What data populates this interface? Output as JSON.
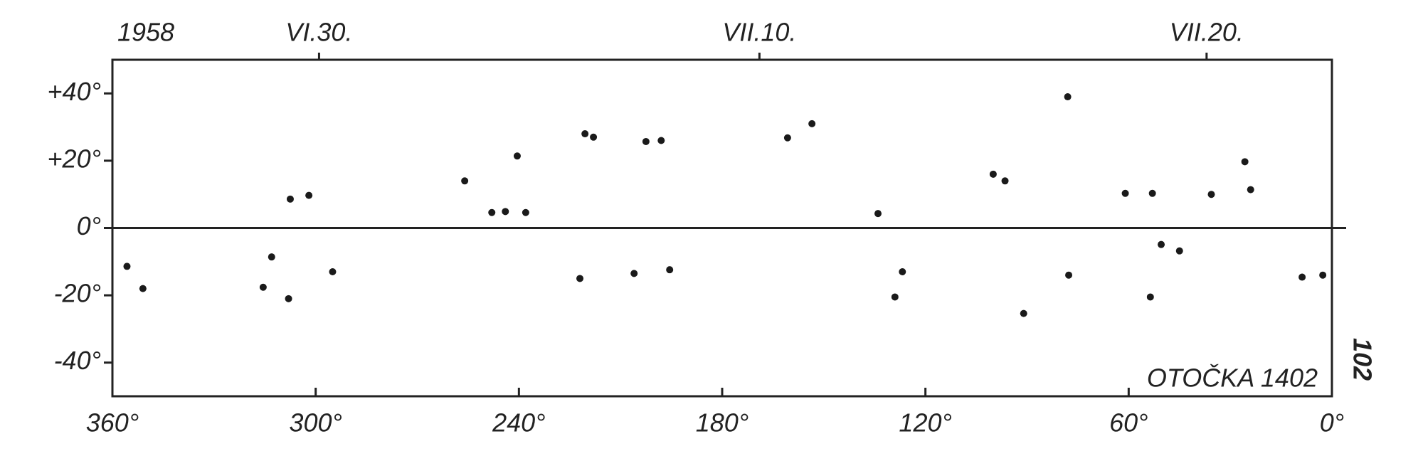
{
  "chart_data": {
    "type": "scatter",
    "year": "1958",
    "annotation": "OTOČKA 1402",
    "page_number": "102",
    "xlim": [
      360,
      0
    ],
    "ylim": [
      -50,
      50
    ],
    "xticks": [
      {
        "value": 360,
        "label": "360°"
      },
      {
        "value": 300,
        "label": "300°"
      },
      {
        "value": 240,
        "label": "240°"
      },
      {
        "value": 180,
        "label": "180°"
      },
      {
        "value": 120,
        "label": "120°"
      },
      {
        "value": 60,
        "label": "60°"
      },
      {
        "value": 0,
        "label": "0°"
      }
    ],
    "x2ticks": [
      {
        "value": 299,
        "label": "VI.30."
      },
      {
        "value": 169,
        "label": "VII.10."
      },
      {
        "value": 37,
        "label": "VII.20."
      }
    ],
    "yticks": [
      {
        "value": 40,
        "label": "+40°"
      },
      {
        "value": 20,
        "label": "+20°"
      },
      {
        "value": 0,
        "label": "0°"
      },
      {
        "value": -20,
        "label": "-20°"
      },
      {
        "value": -40,
        "label": "-40°"
      }
    ],
    "color": "#1a1a1a",
    "x": [
      355.7,
      351,
      315.5,
      308,
      313,
      295,
      307.5,
      302,
      256,
      248,
      244,
      238,
      240.5,
      220.5,
      218,
      202.5,
      198,
      222,
      206,
      195.5,
      160.7,
      153.5,
      134,
      129,
      126.8,
      100,
      96.5,
      78,
      91,
      77.7,
      61,
      53,
      53.6,
      50.4,
      45,
      35.6,
      25.7,
      24,
      8.8,
      2.7
    ],
    "y": [
      -11.4,
      -18,
      -17.6,
      -21,
      -8.6,
      -13,
      8.6,
      9.7,
      14,
      4.6,
      4.9,
      4.6,
      21.4,
      28,
      27,
      25.7,
      26,
      -15,
      -13.5,
      -12.4,
      26.8,
      31,
      4.3,
      -20.5,
      -13,
      16,
      14,
      39,
      -25.4,
      -14,
      10.3,
      10.3,
      -20.5,
      -4.9,
      -6.8,
      10,
      19.7,
      11.4,
      -14.6,
      -14
    ]
  }
}
